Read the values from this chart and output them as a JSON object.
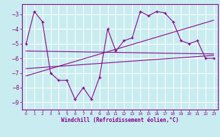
{
  "xlabel": "Windchill (Refroidissement éolien,°C)",
  "bg_color": "#c8ecf0",
  "grid_color": "#ffffff",
  "line_color": "#880088",
  "xlim": [
    -0.5,
    23.5
  ],
  "ylim": [
    -9.5,
    -2.3
  ],
  "yticks": [
    -9,
    -8,
    -7,
    -6,
    -5,
    -4,
    -3
  ],
  "xticks": [
    0,
    1,
    2,
    3,
    4,
    5,
    6,
    7,
    8,
    9,
    10,
    11,
    12,
    13,
    14,
    15,
    16,
    17,
    18,
    19,
    20,
    21,
    22,
    23
  ],
  "series1_x": [
    0,
    1,
    2,
    3,
    4,
    5,
    6,
    7,
    8,
    9,
    10,
    11,
    12,
    13,
    14,
    15,
    16,
    17,
    18,
    19,
    20,
    21,
    22,
    23
  ],
  "series1_y": [
    -5.0,
    -2.8,
    -3.5,
    -7.0,
    -7.5,
    -7.5,
    -8.8,
    -8.0,
    -8.8,
    -7.3,
    -4.0,
    -5.5,
    -4.8,
    -4.6,
    -2.8,
    -3.1,
    -2.8,
    -2.9,
    -3.5,
    -4.8,
    -5.0,
    -4.8,
    -6.0,
    -6.0
  ],
  "trend1_x": [
    0,
    23
  ],
  "trend1_y": [
    -5.5,
    -5.7
  ],
  "trend2_x": [
    0,
    23
  ],
  "trend2_y": [
    -6.7,
    -5.8
  ],
  "trend3_x": [
    0,
    23
  ],
  "trend3_y": [
    -7.2,
    -3.4
  ]
}
